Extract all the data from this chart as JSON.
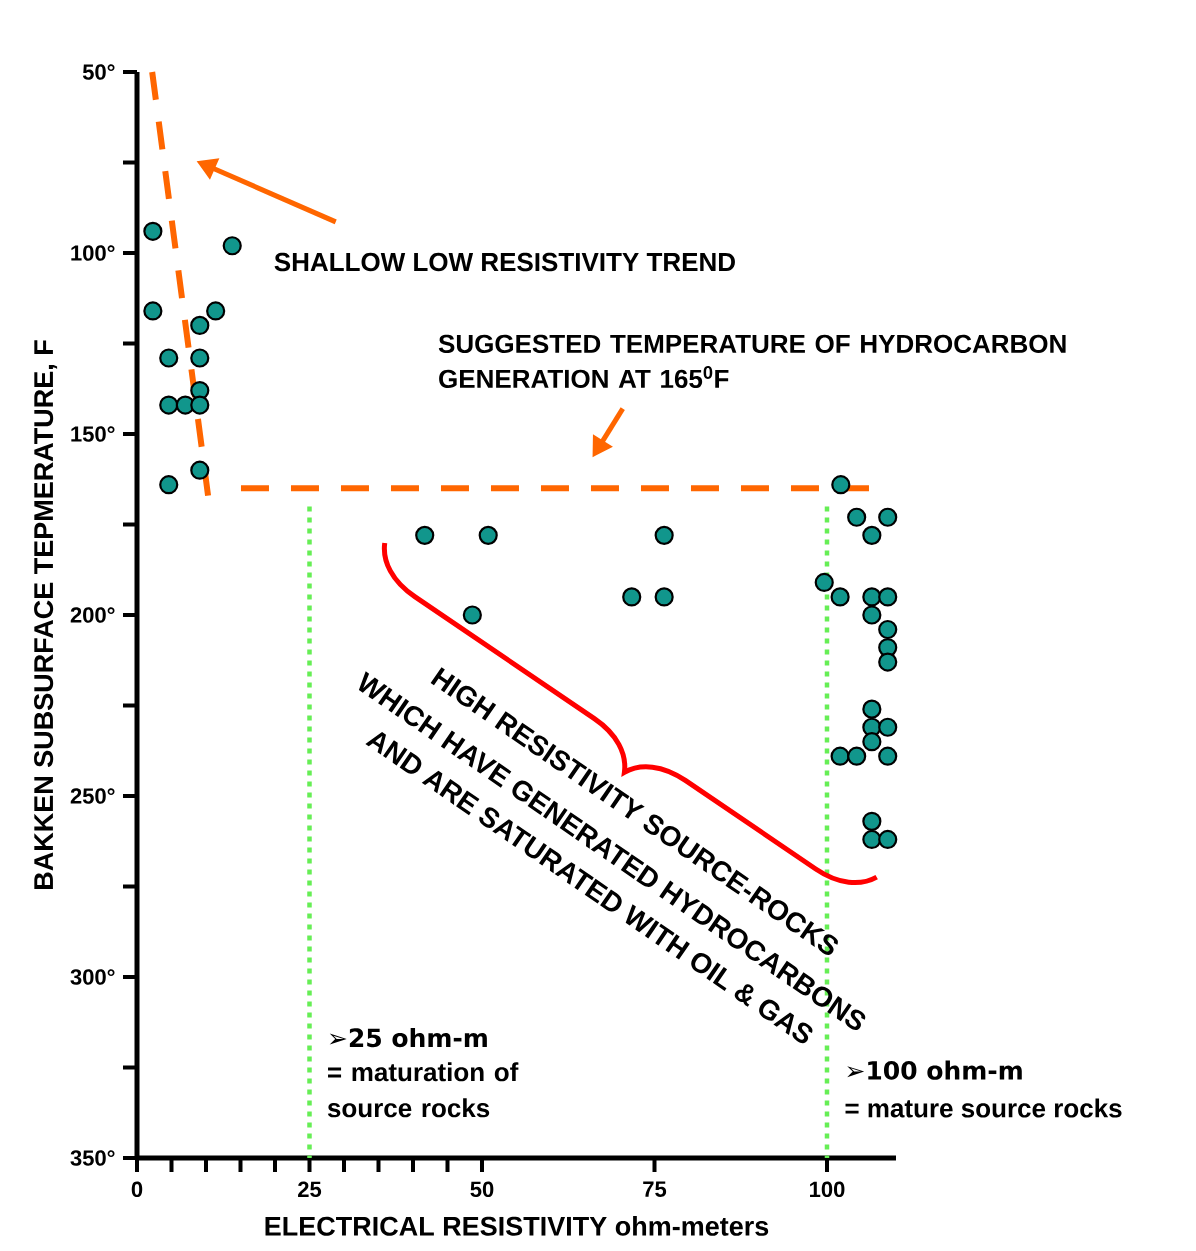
{
  "chart_data": {
    "type": "scatter",
    "xlabel": "ELECTRICAL RESISTIVITY ohm-meters",
    "ylabel": "BAKKEN SUBSURFACE TEPMERATURE, F",
    "xlim": [
      0,
      110
    ],
    "ylim": [
      350,
      50
    ],
    "xticks": [
      0,
      {
        "value": 5,
        "label": null
      },
      {
        "value": 10,
        "label": null
      },
      {
        "value": 15,
        "label": null
      },
      {
        "value": 20,
        "label": null
      },
      25,
      {
        "value": 30,
        "label": null
      },
      {
        "value": 35,
        "label": null
      },
      {
        "value": 40,
        "label": null
      },
      {
        "value": 45,
        "label": null
      },
      50,
      75,
      100
    ],
    "yticks": [
      {
        "value": 50,
        "label": "50°"
      },
      {
        "value": 75,
        "label": null
      },
      {
        "value": 100,
        "label": "100°"
      },
      {
        "value": 125,
        "label": null
      },
      {
        "value": 150,
        "label": "150°"
      },
      {
        "value": 175,
        "label": null
      },
      {
        "value": 200,
        "label": "200°"
      },
      {
        "value": 225,
        "label": null
      },
      {
        "value": 250,
        "label": "250°"
      },
      {
        "value": 275,
        "label": null
      },
      {
        "value": 300,
        "label": "300°"
      },
      {
        "value": 325,
        "label": null
      },
      {
        "value": 350,
        "label": "350°"
      }
    ],
    "series": [
      {
        "color": "#11968c",
        "x": [
          2.3,
          13.8,
          2.3,
          11.4,
          9.1,
          4.6,
          9.1,
          9.1,
          4.6,
          7,
          9.1,
          9.1,
          4.6,
          102,
          104.3,
          108.8,
          106.5,
          41.7,
          50.9,
          76.4,
          99.6,
          101.9,
          71.7,
          76.4,
          106.5,
          108.8,
          48.6,
          106.5,
          108.8,
          108.8,
          108.8,
          106.5,
          106.5,
          108.8,
          106.5,
          101.9,
          104.3,
          108.8,
          106.5,
          106.5,
          108.8
        ],
        "values": [
          94,
          98,
          116,
          116,
          120,
          129,
          129,
          138,
          142,
          142,
          142,
          160,
          164,
          164,
          173,
          173,
          178,
          178,
          178,
          178,
          191,
          195,
          195,
          195,
          195,
          195,
          200,
          200,
          204,
          209,
          213,
          226,
          231,
          231,
          235,
          239,
          239,
          239,
          257,
          262,
          262
        ]
      },
      {
        "type": "line",
        "color": "#ff6600",
        "line_style": "dashed",
        "marker": "none",
        "x": [
          2.2,
          10.3
        ],
        "values": [
          50,
          167
        ]
      }
    ],
    "ref_lines": [
      {
        "axis": "y",
        "value": 165,
        "color": "#ff6600",
        "line_style": "dashed"
      },
      {
        "axis": "x",
        "value": 25,
        "label": "➢25 ohm-m",
        "color": "#66ee55",
        "line_style": "dotted"
      },
      {
        "axis": "x",
        "value": 100,
        "label": "➢100 ohm-m",
        "color": "#66ee55",
        "line_style": "dotted"
      }
    ],
    "annotations": [
      "SHALLOW LOW RESISTIVITY TREND",
      "SUGGESTED TEMPERATURE OF HYDROCARBON GENERATION AT 165$^{0}$F",
      "HIGH RESISTIVITY SOURCE-ROCKS",
      "WHICH HAVE GENERATED HYDROCARBONS",
      "AND ARE SATURATED WITH OIL & GAS",
      "= maturation of source rocks",
      "= mature source rocks"
    ]
  }
}
